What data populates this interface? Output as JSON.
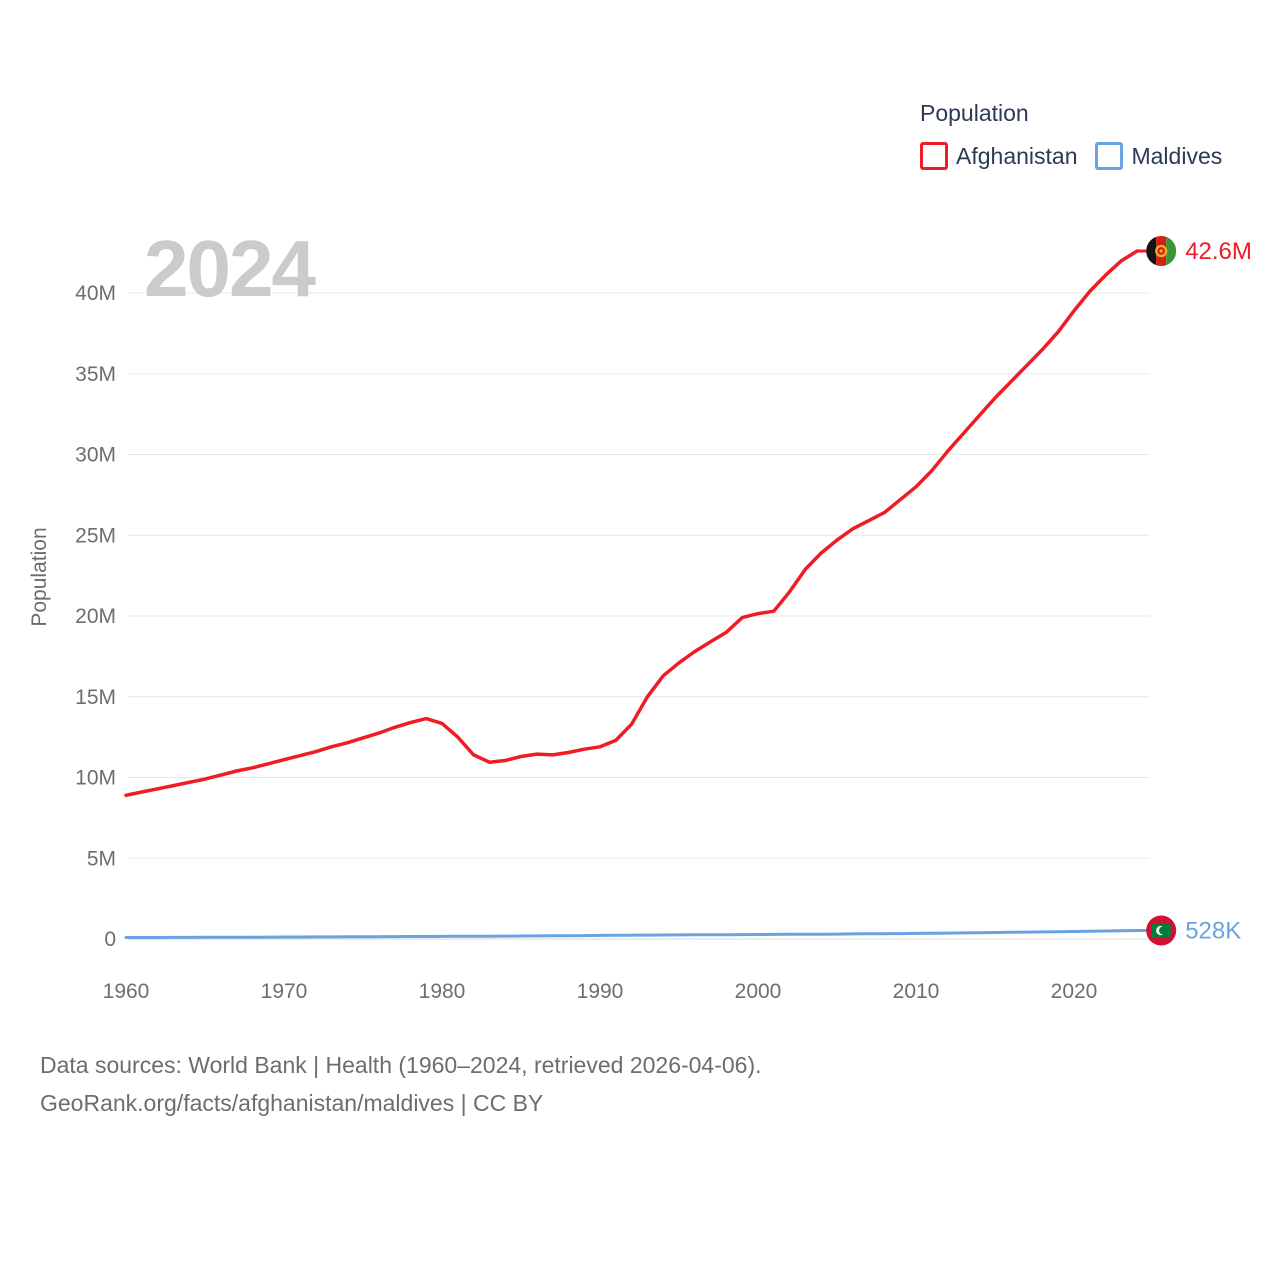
{
  "page": {
    "watermark": "2024",
    "footer_line1": "Data sources: World Bank | Health (1960–2024, retrieved 2026-04-06).",
    "footer_line2": "GeoRank.org/facts/afghanistan/maldives | CC BY"
  },
  "legend": {
    "title": "Population",
    "items": [
      {
        "label": "Afghanistan",
        "color": "#ee1c25"
      },
      {
        "label": "Maldives",
        "color": "#6aa3e1"
      }
    ]
  },
  "chart_data": {
    "type": "line",
    "title": "Population",
    "xlabel": "",
    "ylabel": "Population",
    "units": "millions",
    "grid": "horizontal",
    "legend_position": "top-right",
    "xlim": [
      1960,
      2024
    ],
    "ylim": [
      0,
      43.5
    ],
    "x_ticks": [
      1960,
      1970,
      1980,
      1990,
      2000,
      2010,
      2020
    ],
    "y_ticks": [
      {
        "value": 0,
        "label": "0"
      },
      {
        "value": 5,
        "label": "5M"
      },
      {
        "value": 10,
        "label": "10M"
      },
      {
        "value": 15,
        "label": "15M"
      },
      {
        "value": 20,
        "label": "20M"
      },
      {
        "value": 25,
        "label": "25M"
      },
      {
        "value": 30,
        "label": "30M"
      },
      {
        "value": 35,
        "label": "35M"
      },
      {
        "value": 40,
        "label": "40M"
      }
    ],
    "x": [
      1960,
      1961,
      1962,
      1963,
      1964,
      1965,
      1966,
      1967,
      1968,
      1969,
      1970,
      1971,
      1972,
      1973,
      1974,
      1975,
      1976,
      1977,
      1978,
      1979,
      1980,
      1981,
      1982,
      1983,
      1984,
      1985,
      1986,
      1987,
      1988,
      1989,
      1990,
      1991,
      1992,
      1993,
      1994,
      1995,
      1996,
      1997,
      1998,
      1999,
      2000,
      2001,
      2002,
      2003,
      2004,
      2005,
      2006,
      2007,
      2008,
      2009,
      2010,
      2011,
      2012,
      2013,
      2014,
      2015,
      2016,
      2017,
      2018,
      2019,
      2020,
      2021,
      2022,
      2023,
      2024
    ],
    "series": [
      {
        "id": "afghanistan",
        "name": "Afghanistan",
        "color": "#ee1c25",
        "end_label": "42.6M",
        "end_value_millions": 42.6,
        "values": [
          8.9,
          9.1,
          9.3,
          9.5,
          9.7,
          9.9,
          10.15,
          10.4,
          10.6,
          10.85,
          11.1,
          11.35,
          11.6,
          11.9,
          12.15,
          12.45,
          12.75,
          13.1,
          13.4,
          13.65,
          13.35,
          12.5,
          11.4,
          10.95,
          11.05,
          11.3,
          11.45,
          11.4,
          11.55,
          11.75,
          11.9,
          12.3,
          13.3,
          15.0,
          16.3,
          17.1,
          17.8,
          18.4,
          19.0,
          19.9,
          20.15,
          20.3,
          21.5,
          22.9,
          23.9,
          24.7,
          25.4,
          25.9,
          26.4,
          27.2,
          28.0,
          29.0,
          30.2,
          31.3,
          32.4,
          33.5,
          34.5,
          35.5,
          36.5,
          37.6,
          38.9,
          40.1,
          41.1,
          42.0,
          42.6
        ]
      },
      {
        "id": "maldives",
        "name": "Maldives",
        "color": "#6aa3e1",
        "end_label": "528K",
        "end_value_millions": 0.528,
        "values": [
          0.09,
          0.092,
          0.094,
          0.097,
          0.1,
          0.103,
          0.106,
          0.11,
          0.113,
          0.117,
          0.121,
          0.125,
          0.128,
          0.132,
          0.136,
          0.14,
          0.144,
          0.148,
          0.152,
          0.156,
          0.161,
          0.166,
          0.171,
          0.176,
          0.182,
          0.188,
          0.194,
          0.2,
          0.206,
          0.213,
          0.22,
          0.227,
          0.233,
          0.24,
          0.246,
          0.252,
          0.258,
          0.263,
          0.269,
          0.274,
          0.279,
          0.284,
          0.289,
          0.294,
          0.3,
          0.306,
          0.313,
          0.32,
          0.328,
          0.337,
          0.346,
          0.356,
          0.366,
          0.377,
          0.389,
          0.401,
          0.414,
          0.427,
          0.44,
          0.453,
          0.466,
          0.479,
          0.494,
          0.512,
          0.528
        ]
      }
    ]
  }
}
